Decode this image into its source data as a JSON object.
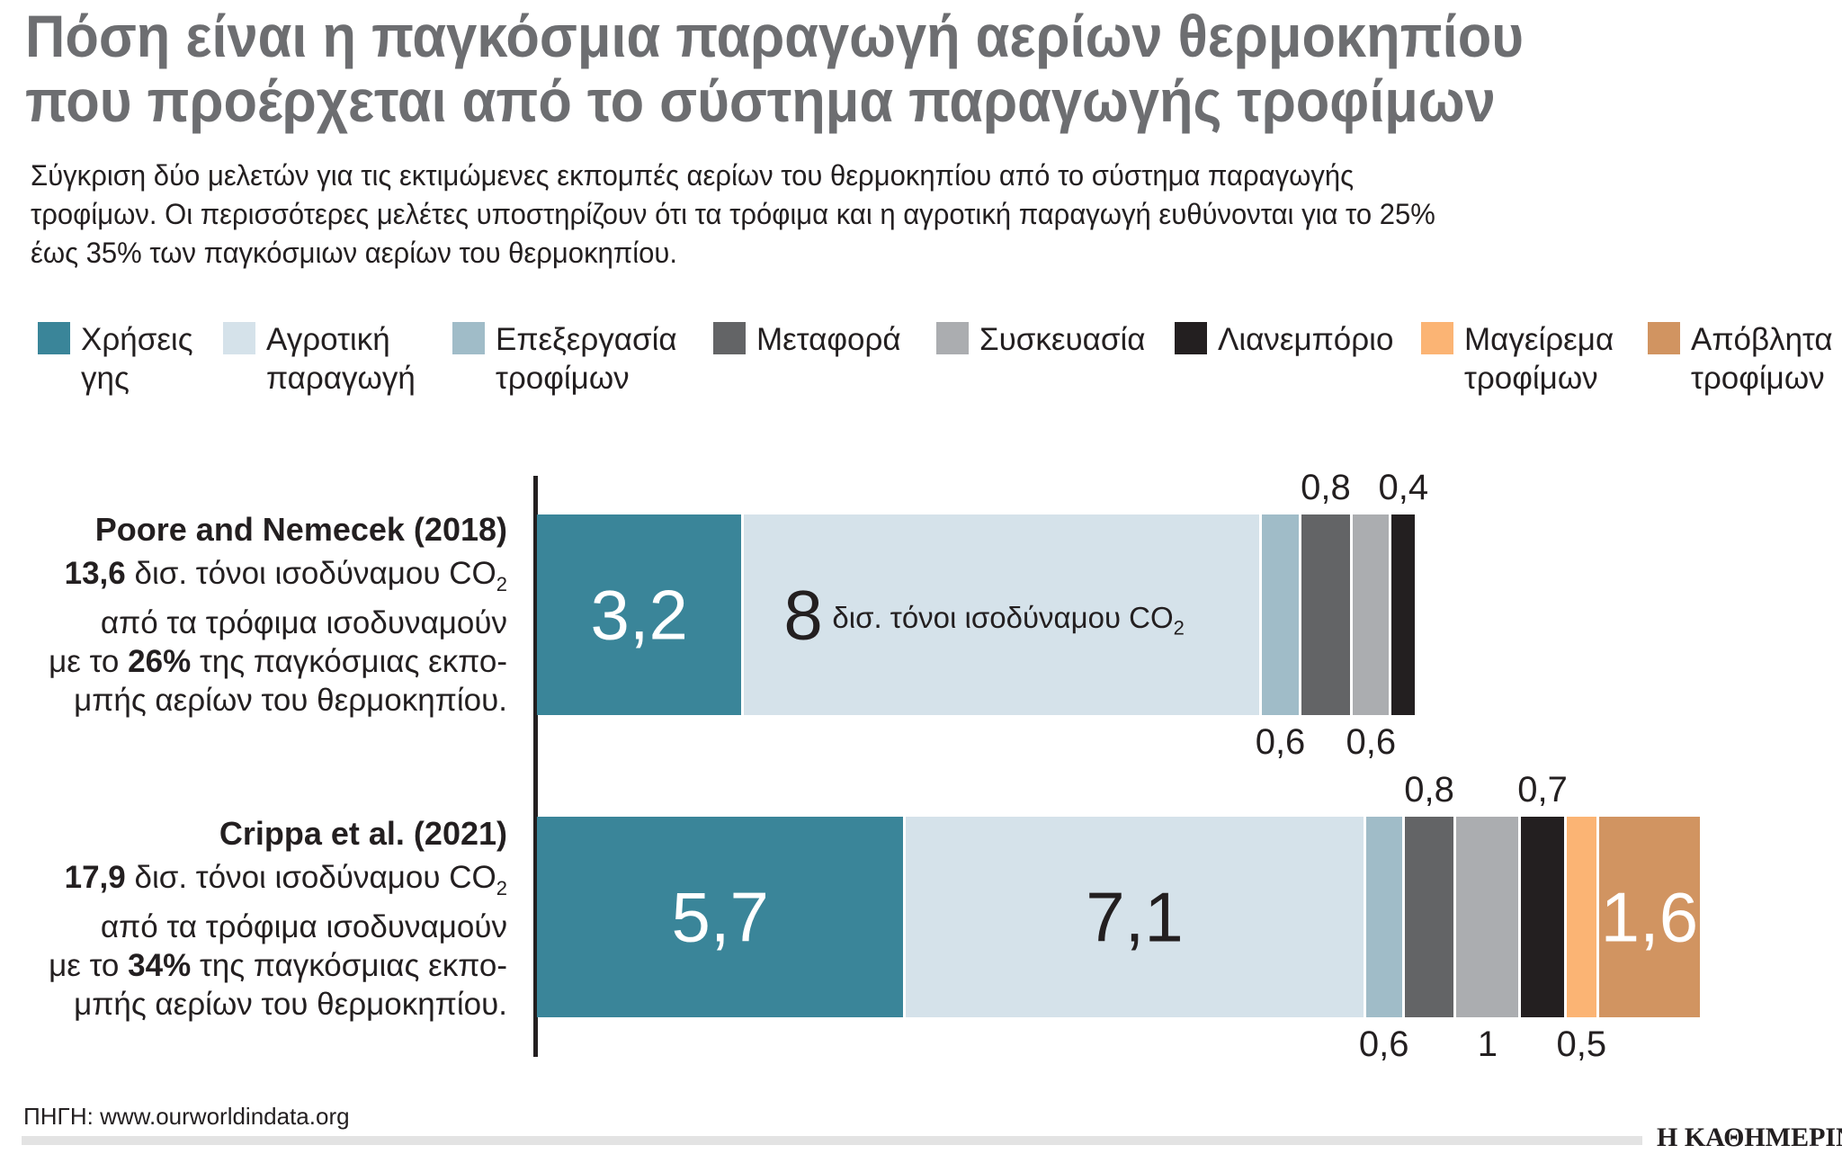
{
  "title": {
    "line1": "Πόση είναι η παγκόσμια παραγωγή αερίων θερμοκηπίου",
    "line2": "που προέρχεται από το σύστημα παραγωγής τροφίμων"
  },
  "subtitle": {
    "lines": [
      "Σύγκριση δύο μελετών για τις εκτιμώμενες εκπομπές αερίων του θερμοκηπίου από το σύστημα παραγωγής",
      "τροφίμων. Οι περισσότερες μελέτες υποστηρίζουν ότι τα τρόφιμα και η αγροτική παραγωγή ευθύνονται για το 25%",
      "έως 35% των παγκόσμιων αερίων του θερμοκηπίου."
    ]
  },
  "chart_data": {
    "type": "bar",
    "orientation": "horizontal",
    "stacked": true,
    "unit": "δισ. τόνοι ισοδύναμου CO2",
    "legend_position": "top",
    "grid": false,
    "series": [
      {
        "name": "Χρήσεις γης",
        "lines": [
          "Χρήσεις",
          "γης"
        ],
        "color": "#3a8599"
      },
      {
        "name": "Αγροτική παραγωγή",
        "lines": [
          "Αγροτική",
          "παραγωγή"
        ],
        "color": "#d5e2ea"
      },
      {
        "name": "Επεξεργασία τροφίμων",
        "lines": [
          "Επεξεργασία",
          "τροφίμων"
        ],
        "color": "#a0bcc8"
      },
      {
        "name": "Μεταφορά",
        "lines": [
          "Μεταφορά"
        ],
        "color": "#636466"
      },
      {
        "name": "Συσκευασία",
        "lines": [
          "Συσκευασία"
        ],
        "color": "#abadb0"
      },
      {
        "name": "Λιανεμπόριο",
        "lines": [
          "Λιανεμπόριο"
        ],
        "color": "#231f20"
      },
      {
        "name": "Μαγείρεμα τροφίμων",
        "lines": [
          "Μαγείρεμα",
          "τροφίμων"
        ],
        "color": "#fbb474"
      },
      {
        "name": "Απόβλητα τροφίμων",
        "lines": [
          "Απόβλητα",
          "τροφίμων"
        ],
        "color": "#d19461"
      }
    ],
    "rows": [
      {
        "study": "Poore and Nemecek (2018)",
        "values": [
          3.2,
          8,
          0.6,
          0.8,
          0.6,
          0.4,
          null,
          null
        ],
        "labels": [
          "3,2",
          "8",
          "0,6",
          "0,8",
          "0,6",
          "0,4",
          "",
          ""
        ],
        "label_positions": [
          "inside",
          "inside",
          "below",
          "above",
          "below",
          "above",
          "",
          ""
        ],
        "total": "13,6",
        "share": "26%"
      },
      {
        "study": "Crippa et al. (2021)",
        "values": [
          5.7,
          7.1,
          0.6,
          0.8,
          1,
          0.7,
          0.5,
          1.6
        ],
        "labels": [
          "5,7",
          "7,1",
          "0,6",
          "0,8",
          "1",
          "0,7",
          "0,5",
          "1,6"
        ],
        "label_positions": [
          "inside",
          "inside",
          "below",
          "above",
          "below",
          "above",
          "below",
          "inside"
        ],
        "total": "17,9",
        "share": "34%"
      }
    ]
  },
  "studies_text": {
    "unit_text": "δισ. τόνοι ισοδύναμου CO",
    "unit_sub": "2",
    "line2": "από τα τρόφιμα ισοδυναμούν",
    "line3_pre": "με το",
    "line3_post": "της παγκόσμιας εκπο-",
    "line4": "μπής αερίων του θερμοκηπίου."
  },
  "bar_unit_label": {
    "text": "δισ. τόνοι ισοδύναμου CO",
    "sub": "2"
  },
  "footer": {
    "source": "ΠΗΓΗ: www.ourworldindata.org",
    "logo": "Η ΚΑΘΗΜΕΡΙΝΗ"
  }
}
